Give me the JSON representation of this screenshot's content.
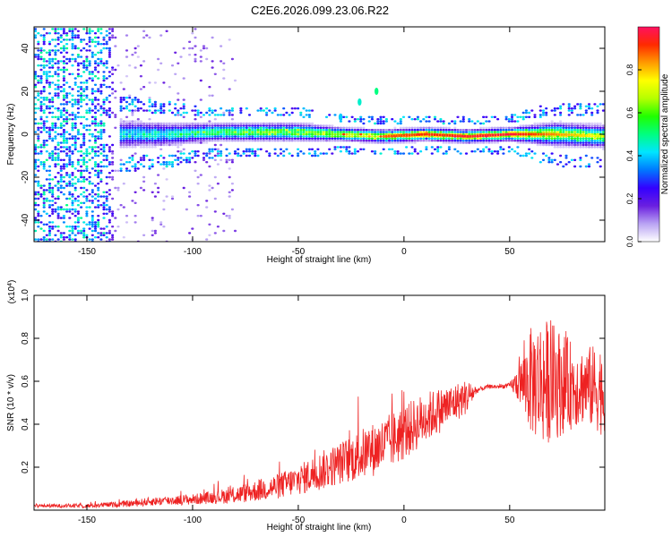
{
  "title": "C2E6.2026.099.23.06.R22",
  "chart_data": [
    {
      "type": "heatmap",
      "xlabel": "Height of straight line (km)",
      "ylabel": "Frequency (Hz)",
      "xlim": [
        -175,
        95
      ],
      "ylim": [
        -50,
        50
      ],
      "xticks": [
        -150,
        -100,
        -50,
        0,
        50
      ],
      "yticks": [
        -40,
        -20,
        0,
        20,
        40
      ],
      "colorbar": {
        "label": "Normalized spectral amplitude",
        "range": [
          0,
          1
        ],
        "ticks": [
          0.0,
          0.2,
          0.4,
          0.6,
          0.8
        ],
        "colors": [
          "#ffffff",
          "#b9a3f3",
          "#6a1fe0",
          "#3300ff",
          "#0078ff",
          "#00e5ff",
          "#00ff80",
          "#20ff00",
          "#b5ff00",
          "#ffff00",
          "#ff9a00",
          "#ff2a00",
          "#ff1060"
        ]
      },
      "noise_band": {
        "x_range": [
          -175,
          -135
        ],
        "amplitude": 0.45
      },
      "ridge": [
        {
          "x": -135,
          "center_hz": 0,
          "halfwidth_hz": 6,
          "peak": 0.48
        },
        {
          "x": -110,
          "center_hz": 0,
          "halfwidth_hz": 5,
          "peak": 0.55
        },
        {
          "x": -90,
          "center_hz": 1,
          "halfwidth_hz": 4,
          "peak": 0.62
        },
        {
          "x": -70,
          "center_hz": 1,
          "halfwidth_hz": 4,
          "peak": 0.7
        },
        {
          "x": -50,
          "center_hz": 1,
          "halfwidth_hz": 4,
          "peak": 0.72
        },
        {
          "x": -30,
          "center_hz": 0,
          "halfwidth_hz": 3,
          "peak": 0.8
        },
        {
          "x": -10,
          "center_hz": -1,
          "halfwidth_hz": 3,
          "peak": 0.88
        },
        {
          "x": 10,
          "center_hz": 0,
          "halfwidth_hz": 3,
          "peak": 0.92
        },
        {
          "x": 30,
          "center_hz": -1,
          "halfwidth_hz": 3,
          "peak": 0.95
        },
        {
          "x": 50,
          "center_hz": 0,
          "halfwidth_hz": 3,
          "peak": 0.97
        },
        {
          "x": 70,
          "center_hz": 0,
          "halfwidth_hz": 5,
          "peak": 0.85
        },
        {
          "x": 95,
          "center_hz": -1,
          "halfwidth_hz": 5,
          "peak": 0.72
        }
      ],
      "outliers": [
        {
          "x": -13,
          "y": 20,
          "amplitude": 0.5
        },
        {
          "x": -21,
          "y": 15,
          "amplitude": 0.45
        },
        {
          "x": -30,
          "y": 8,
          "amplitude": 0.4
        }
      ]
    },
    {
      "type": "line",
      "xlabel": "Height of straight line (km)",
      "ylabel": "SNR (10 * v/v)",
      "scale_label": "(x10",
      "scale_exp": "4",
      "scale_suffix": ")",
      "xlim": [
        -175,
        95
      ],
      "ylim": [
        0,
        1.0
      ],
      "xticks": [
        -150,
        -100,
        -50,
        0,
        50
      ],
      "yticks": [
        0.2,
        0.4,
        0.6,
        0.8,
        1.0
      ],
      "color": "#ee2222",
      "series": [
        {
          "name": "SNR",
          "x": [
            -175,
            -150,
            -140,
            -130,
            -120,
            -100,
            -90,
            -80,
            -70,
            -60,
            -50,
            -40,
            -30,
            -20,
            -10,
            0,
            10,
            20,
            30,
            35,
            40,
            45,
            50,
            55,
            60,
            65,
            70,
            75,
            80,
            85,
            90,
            95
          ],
          "base": [
            0.02,
            0.02,
            0.025,
            0.03,
            0.04,
            0.05,
            0.06,
            0.07,
            0.09,
            0.11,
            0.14,
            0.18,
            0.22,
            0.26,
            0.3,
            0.36,
            0.43,
            0.48,
            0.53,
            0.56,
            0.575,
            0.575,
            0.58,
            0.59,
            0.6,
            0.6,
            0.6,
            0.59,
            0.58,
            0.58,
            0.57,
            0.56
          ],
          "spread": [
            0.008,
            0.01,
            0.012,
            0.015,
            0.02,
            0.025,
            0.03,
            0.04,
            0.05,
            0.06,
            0.07,
            0.09,
            0.1,
            0.12,
            0.13,
            0.13,
            0.12,
            0.1,
            0.08,
            0.012,
            0.01,
            0.01,
            0.012,
            0.1,
            0.25,
            0.3,
            0.28,
            0.24,
            0.2,
            0.18,
            0.2,
            0.22
          ]
        }
      ]
    }
  ]
}
